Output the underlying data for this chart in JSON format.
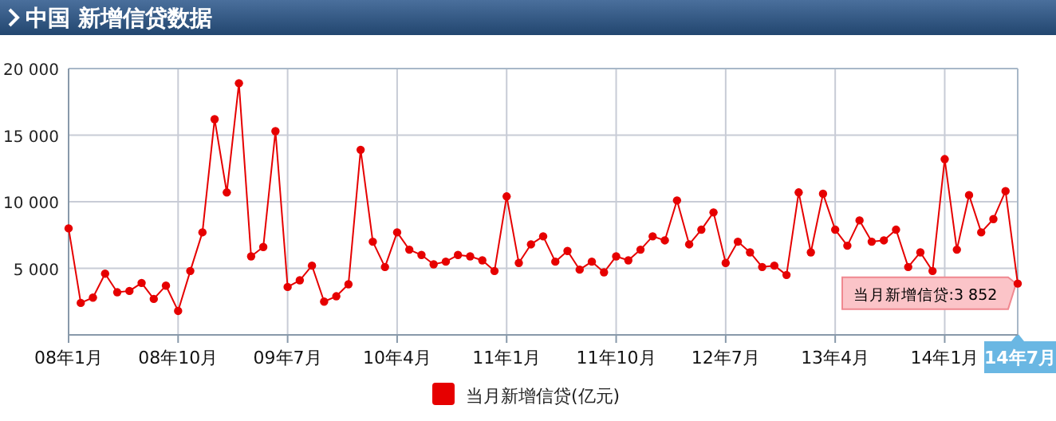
{
  "chart_data": {
    "type": "line",
    "title": "中国  新增信贷数据",
    "categories": [
      "08年1月",
      null,
      null,
      null,
      null,
      null,
      null,
      null,
      null,
      "08年10月",
      null,
      null,
      null,
      null,
      null,
      null,
      null,
      null,
      "09年7月",
      null,
      null,
      null,
      null,
      null,
      null,
      null,
      null,
      "10年4月",
      null,
      null,
      null,
      null,
      null,
      null,
      null,
      null,
      "11年1月",
      null,
      null,
      null,
      null,
      null,
      null,
      null,
      null,
      "11年10月",
      null,
      null,
      null,
      null,
      null,
      null,
      null,
      null,
      "12年7月",
      null,
      null,
      null,
      null,
      null,
      null,
      null,
      null,
      "13年4月",
      null,
      null,
      null,
      null,
      null,
      null,
      null,
      null,
      "14年1月",
      null,
      null,
      null,
      null,
      null,
      "14年7月"
    ],
    "series": [
      {
        "name": "当月新增信贷(亿元)",
        "color": "#e60000",
        "values": [
          8000,
          2400,
          2800,
          4600,
          3200,
          3300,
          3900,
          2700,
          3700,
          1800,
          4800,
          7700,
          16200,
          10700,
          18900,
          5900,
          6600,
          15300,
          3600,
          4100,
          5200,
          2500,
          2900,
          3800,
          13900,
          7000,
          5100,
          7700,
          6400,
          6000,
          5300,
          5500,
          6000,
          5900,
          5600,
          4800,
          10400,
          5400,
          6800,
          7400,
          5500,
          6300,
          4900,
          5500,
          4700,
          5900,
          5600,
          6400,
          7400,
          7100,
          10100,
          6800,
          7900,
          9200,
          5400,
          7000,
          6200,
          5100,
          5200,
          4500,
          10700,
          6200,
          10600,
          7900,
          6700,
          8600,
          7000,
          7100,
          7900,
          5100,
          6200,
          4800,
          13200,
          6400,
          10500,
          7700,
          8700,
          10800,
          3852
        ]
      }
    ],
    "ylim": [
      0,
      20000
    ],
    "yticks": [
      {
        "value": 5000,
        "label": "5 000"
      },
      {
        "value": 10000,
        "label": "10 000"
      },
      {
        "value": 15000,
        "label": "15 000"
      },
      {
        "value": 20000,
        "label": "20 000"
      }
    ],
    "grid": true,
    "legend": "bottom",
    "marker": "circle",
    "line_style": "solid",
    "annotations": [
      {
        "text": "当月新增信贷:3 852",
        "x": "14年7月",
        "y": 3852
      }
    ]
  }
}
